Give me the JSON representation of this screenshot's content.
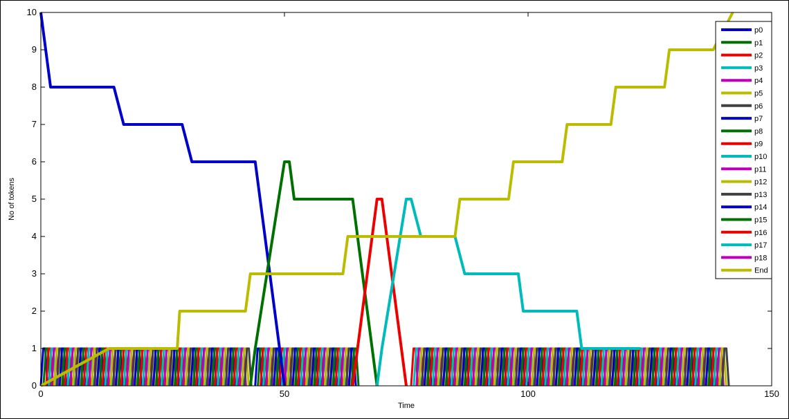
{
  "chart_data": {
    "type": "line",
    "title": "",
    "xlabel": "Time",
    "ylabel": "No of tokens",
    "xlim": [
      0,
      150
    ],
    "ylim": [
      0,
      10
    ],
    "xticks": [
      0,
      50,
      100,
      150
    ],
    "yticks": [
      0,
      1,
      2,
      3,
      4,
      5,
      6,
      7,
      8,
      9,
      10
    ],
    "grid": false,
    "legend_position": "top-right",
    "series": [
      {
        "name": "p0",
        "color": "#0000cc",
        "x": [
          0,
          2,
          15,
          17,
          29,
          31,
          44,
          50
        ],
        "y": [
          10,
          8,
          8,
          7,
          7,
          6,
          6,
          0
        ]
      },
      {
        "name": "p1",
        "color": "#007000",
        "x": [
          43,
          44,
          50,
          51,
          52,
          64,
          69
        ],
        "y": [
          0,
          1,
          6,
          6,
          5,
          5,
          0
        ]
      },
      {
        "name": "p2",
        "color": "#ee0000",
        "x": [
          64,
          65,
          69,
          70,
          75
        ],
        "y": [
          0,
          1,
          5,
          5,
          0
        ]
      },
      {
        "name": "p3",
        "color": "#00bbbb",
        "x": [
          69,
          70,
          75,
          76,
          78,
          85,
          87,
          98,
          99,
          110,
          111,
          123
        ],
        "y": [
          0,
          1,
          5,
          5,
          4,
          4,
          3,
          3,
          2,
          2,
          1,
          1
        ]
      },
      {
        "name": "p4",
        "color": "#bb00bb",
        "x": [],
        "y": []
      },
      {
        "name": "p5",
        "color": "#bbbb00",
        "x": [],
        "y": []
      },
      {
        "name": "p6",
        "color": "#404040",
        "x": [],
        "y": []
      },
      {
        "name": "p7",
        "color": "#0000cc",
        "x": [],
        "y": []
      },
      {
        "name": "p8",
        "color": "#007000",
        "x": [],
        "y": []
      },
      {
        "name": "p9",
        "color": "#ee0000",
        "x": [],
        "y": []
      },
      {
        "name": "p10",
        "color": "#00bbbb",
        "x": [],
        "y": []
      },
      {
        "name": "p11",
        "color": "#bb00bb",
        "x": [],
        "y": []
      },
      {
        "name": "p12",
        "color": "#bbbb00",
        "x": [],
        "y": []
      },
      {
        "name": "p13",
        "color": "#404040",
        "x": [],
        "y": []
      },
      {
        "name": "p14",
        "color": "#0000cc",
        "x": [],
        "y": []
      },
      {
        "name": "p15",
        "color": "#007000",
        "x": [],
        "y": []
      },
      {
        "name": "p16",
        "color": "#ee0000",
        "x": [],
        "y": []
      },
      {
        "name": "p17",
        "color": "#00bbbb",
        "x": [],
        "y": []
      },
      {
        "name": "p18",
        "color": "#bb00bb",
        "x": [],
        "y": []
      },
      {
        "name": "End",
        "color": "#bbbb00",
        "x": [
          0,
          14,
          28,
          28.5,
          42,
          43,
          62,
          63,
          85,
          86,
          96,
          97,
          107,
          108,
          117,
          118,
          128,
          129,
          138,
          142
        ],
        "y": [
          0,
          1,
          1,
          2,
          2,
          3,
          3,
          4,
          4,
          5,
          5,
          6,
          6,
          7,
          7,
          8,
          8,
          9,
          9,
          10
        ]
      }
    ],
    "oscillation_note_series": []
  }
}
